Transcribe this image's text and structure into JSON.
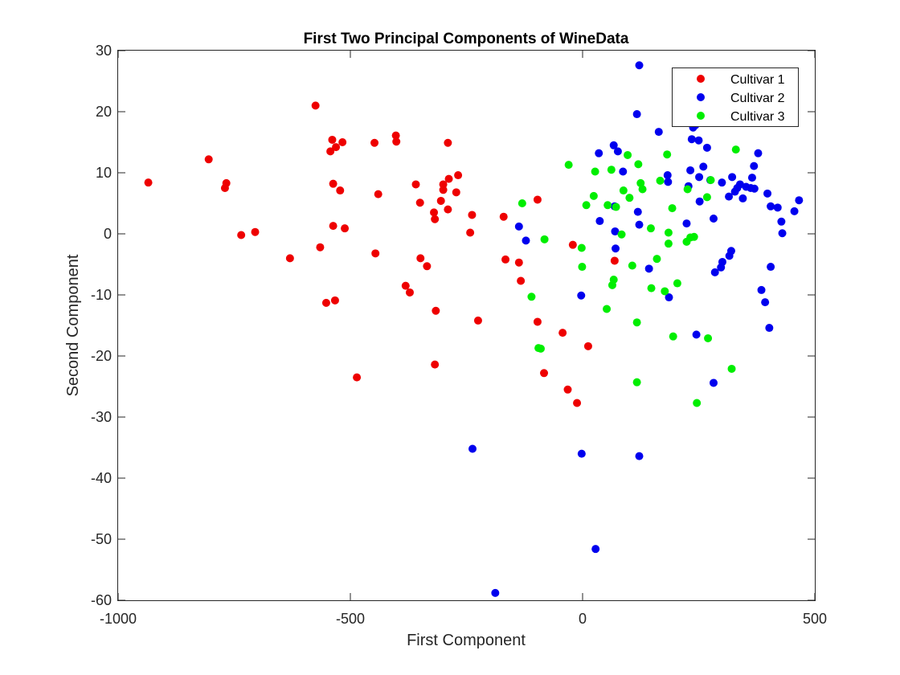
{
  "chart_data": {
    "type": "scatter",
    "title": "First Two Principal Components of WineData",
    "xlabel": "First Component",
    "ylabel": "Second Component",
    "xlim": [
      -1000,
      500
    ],
    "ylim": [
      -60,
      30
    ],
    "xticks": [
      -1000,
      -500,
      0,
      500
    ],
    "yticks": [
      -60,
      -50,
      -40,
      -30,
      -20,
      -10,
      0,
      10,
      20,
      30
    ],
    "grid": false,
    "legend_position": "top-right",
    "series": [
      {
        "name": "Cultivar 1",
        "color": "#ee0000",
        "points": [
          [
            -935,
            8.4
          ],
          [
            -805,
            12.2
          ],
          [
            -770,
            7.5
          ],
          [
            -767,
            8.3
          ],
          [
            -735,
            -0.2
          ],
          [
            -705,
            0.3
          ],
          [
            -630,
            -4.0
          ],
          [
            -575,
            21.0
          ],
          [
            -565,
            -2.2
          ],
          [
            -552,
            -11.3
          ],
          [
            -543,
            13.5
          ],
          [
            -539,
            15.4
          ],
          [
            -537,
            8.2
          ],
          [
            -537,
            1.3
          ],
          [
            -533,
            -10.9
          ],
          [
            -531,
            14.2
          ],
          [
            -522,
            7.1
          ],
          [
            -517,
            15.0
          ],
          [
            -512,
            0.9
          ],
          [
            -448,
            14.9
          ],
          [
            -446,
            -3.2
          ],
          [
            -440,
            6.5
          ],
          [
            -402,
            16.1
          ],
          [
            -401,
            15.1
          ],
          [
            -381,
            -8.5
          ],
          [
            -372,
            -9.6
          ],
          [
            -359,
            8.1
          ],
          [
            -350,
            5.1
          ],
          [
            -349,
            -4.0
          ],
          [
            -335,
            -5.3
          ],
          [
            -320,
            3.5
          ],
          [
            -318,
            2.4
          ],
          [
            -318,
            -21.4
          ],
          [
            -316,
            -12.6
          ],
          [
            -305,
            5.4
          ],
          [
            -300,
            8.1
          ],
          [
            -300,
            7.2
          ],
          [
            -290,
            14.9
          ],
          [
            -290,
            4.0
          ],
          [
            -288,
            9.0
          ],
          [
            -272,
            6.8
          ],
          [
            -268,
            9.6
          ],
          [
            -242,
            0.2
          ],
          [
            -238,
            3.1
          ],
          [
            -225,
            -14.2
          ],
          [
            -486,
            -23.5
          ],
          [
            -170,
            2.8
          ],
          [
            -166,
            -4.2
          ],
          [
            -137,
            -4.7
          ],
          [
            -133,
            -7.7
          ],
          [
            -97,
            5.6
          ],
          [
            -97,
            -14.4
          ],
          [
            -83,
            -22.8
          ],
          [
            -43,
            -16.2
          ],
          [
            -32,
            -25.5
          ],
          [
            -21,
            -1.8
          ],
          [
            -12,
            -27.7
          ],
          [
            12,
            -18.4
          ],
          [
            69,
            -4.4
          ]
        ]
      },
      {
        "name": "Cultivar 2",
        "color": "#0000ee",
        "points": [
          [
            -237,
            -35.2
          ],
          [
            -188,
            -58.8
          ],
          [
            -137,
            1.2
          ],
          [
            -122,
            -1.1
          ],
          [
            -3,
            -10.1
          ],
          [
            -2,
            -36.0
          ],
          [
            28,
            -51.6
          ],
          [
            35,
            13.2
          ],
          [
            37,
            2.1
          ],
          [
            67,
            14.5
          ],
          [
            69,
            4.5
          ],
          [
            70,
            0.4
          ],
          [
            71,
            -2.4
          ],
          [
            76,
            13.5
          ],
          [
            87,
            10.2
          ],
          [
            117,
            19.6
          ],
          [
            119,
            3.6
          ],
          [
            122,
            27.6
          ],
          [
            122,
            1.5
          ],
          [
            122,
            -36.4
          ],
          [
            143,
            -5.7
          ],
          [
            164,
            16.7
          ],
          [
            183,
            9.6
          ],
          [
            184,
            8.5
          ],
          [
            186,
            -10.4
          ],
          [
            224,
            1.7
          ],
          [
            228,
            7.8
          ],
          [
            232,
            10.4
          ],
          [
            235,
            15.5
          ],
          [
            238,
            17.4
          ],
          [
            243,
            17.8
          ],
          [
            245,
            -16.5
          ],
          [
            250,
            15.3
          ],
          [
            251,
            9.3
          ],
          [
            252,
            5.3
          ],
          [
            260,
            11.0
          ],
          [
            268,
            14.1
          ],
          [
            275,
            8.8
          ],
          [
            282,
            2.5
          ],
          [
            285,
            -6.3
          ],
          [
            298,
            -5.5
          ],
          [
            300,
            8.4
          ],
          [
            301,
            -4.6
          ],
          [
            315,
            6.1
          ],
          [
            316,
            -3.6
          ],
          [
            320,
            -2.8
          ],
          [
            322,
            9.3
          ],
          [
            328,
            6.9
          ],
          [
            333,
            7.5
          ],
          [
            339,
            8.1
          ],
          [
            345,
            5.8
          ],
          [
            352,
            7.7
          ],
          [
            362,
            7.5
          ],
          [
            365,
            9.2
          ],
          [
            369,
            11.1
          ],
          [
            370,
            7.4
          ],
          [
            378,
            13.2
          ],
          [
            385,
            -9.2
          ],
          [
            393,
            -11.2
          ],
          [
            398,
            6.6
          ],
          [
            405,
            -5.4
          ],
          [
            405,
            4.5
          ],
          [
            420,
            4.3
          ],
          [
            428,
            2.0
          ],
          [
            430,
            0.1
          ],
          [
            456,
            3.7
          ],
          [
            466,
            5.5
          ],
          [
            282,
            -24.4
          ],
          [
            402,
            -15.4
          ]
        ]
      },
      {
        "name": "Cultivar 3",
        "color": "#00ee00",
        "points": [
          [
            -130,
            5.0
          ],
          [
            -110,
            -10.3
          ],
          [
            -95,
            -18.7
          ],
          [
            -90,
            -18.8
          ],
          [
            -82,
            -0.9
          ],
          [
            -30,
            11.3
          ],
          [
            -2,
            -2.3
          ],
          [
            -1,
            -5.4
          ],
          [
            8,
            4.7
          ],
          [
            24,
            6.2
          ],
          [
            27,
            10.2
          ],
          [
            52,
            -12.3
          ],
          [
            54,
            4.7
          ],
          [
            62,
            10.5
          ],
          [
            64,
            -8.4
          ],
          [
            67,
            -7.5
          ],
          [
            72,
            4.4
          ],
          [
            84,
            -0.1
          ],
          [
            88,
            7.1
          ],
          [
            97,
            12.9
          ],
          [
            101,
            5.9
          ],
          [
            107,
            -5.2
          ],
          [
            117,
            -14.5
          ],
          [
            117,
            -24.3
          ],
          [
            120,
            11.4
          ],
          [
            125,
            8.3
          ],
          [
            129,
            7.3
          ],
          [
            147,
            0.9
          ],
          [
            148,
            -8.9
          ],
          [
            160,
            -4.1
          ],
          [
            167,
            8.7
          ],
          [
            177,
            -9.4
          ],
          [
            182,
            13.0
          ],
          [
            185,
            -1.6
          ],
          [
            185,
            0.2
          ],
          [
            193,
            4.2
          ],
          [
            195,
            -16.8
          ],
          [
            204,
            -8.1
          ],
          [
            224,
            -1.3
          ],
          [
            226,
            7.3
          ],
          [
            232,
            -0.6
          ],
          [
            240,
            -0.5
          ],
          [
            246,
            -27.7
          ],
          [
            268,
            6.0
          ],
          [
            270,
            -17.1
          ],
          [
            276,
            8.8
          ],
          [
            321,
            -22.1
          ],
          [
            330,
            13.8
          ]
        ]
      }
    ]
  }
}
